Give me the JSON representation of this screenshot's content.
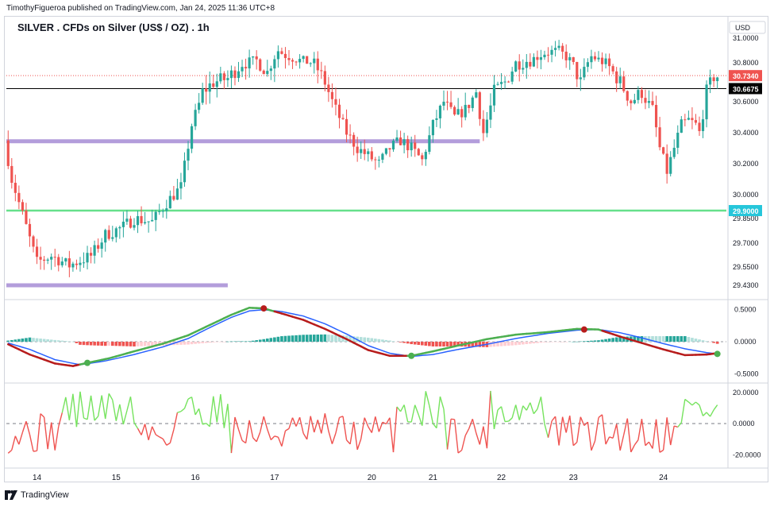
{
  "header": {
    "attribution": "TimothyFigueroa published on TradingView.com, Jan 24, 2025 11:36 UTC+8",
    "symbol_title": "SILVER . CFDs on Silver (US$ / OZ) . 1h"
  },
  "footer": {
    "brand": "TradingView",
    "logo_icon": "tradingview-logo-icon"
  },
  "colors": {
    "up": "#26a69a",
    "down": "#ef5350",
    "purple": "#b39ddb",
    "green_line": "#66e08b",
    "macd": "#2962ff",
    "signal_up": "#4caf50",
    "signal_down": "#b71c1c",
    "osc_up": "#76e35e",
    "osc_down": "#ef5350",
    "last_price_bg": "#ef5350",
    "ref_price_bg": "#000000",
    "level_bg": "#26c6da"
  },
  "chart_data": [
    {
      "type": "candlestick",
      "panel": "price",
      "currency_label": "USD",
      "y_ticks": [
        "31.0000",
        "30.8000",
        "30.6000",
        "30.4000",
        "30.2000",
        "30.0000",
        "29.8500",
        "29.7000",
        "29.5500",
        "29.4300"
      ],
      "y_tick_values": [
        31.0,
        30.8,
        30.6,
        30.4,
        30.2,
        30.0,
        29.85,
        29.7,
        29.55,
        29.43
      ],
      "last_price": 30.734,
      "last_price_label": "30.7340",
      "ref_price": 30.6675,
      "ref_price_label": "30.6675",
      "level_price": 29.9,
      "level_label": "29.9000",
      "zones": [
        {
          "price": 30.345,
          "from_index": 0,
          "to_index": 131
        },
        {
          "price": 29.43,
          "from_index": 0,
          "to_index": 61
        }
      ],
      "anchors": [
        {
          "i": 0,
          "v": 30.35
        },
        {
          "i": 2,
          "v": 30.1
        },
        {
          "i": 4,
          "v": 29.95
        },
        {
          "i": 6,
          "v": 29.8
        },
        {
          "i": 9,
          "v": 29.58
        },
        {
          "i": 13,
          "v": 29.62
        },
        {
          "i": 18,
          "v": 29.56
        },
        {
          "i": 24,
          "v": 29.62
        },
        {
          "i": 28,
          "v": 29.75
        },
        {
          "i": 33,
          "v": 29.8
        },
        {
          "i": 36,
          "v": 29.85
        },
        {
          "i": 41,
          "v": 29.83
        },
        {
          "i": 45,
          "v": 29.95
        },
        {
          "i": 49,
          "v": 30.05
        },
        {
          "i": 52,
          "v": 30.45
        },
        {
          "i": 55,
          "v": 30.65
        },
        {
          "i": 58,
          "v": 30.7
        },
        {
          "i": 62,
          "v": 30.72
        },
        {
          "i": 66,
          "v": 30.8
        },
        {
          "i": 70,
          "v": 30.82
        },
        {
          "i": 73,
          "v": 30.75
        },
        {
          "i": 76,
          "v": 30.9
        },
        {
          "i": 78,
          "v": 30.86
        },
        {
          "i": 82,
          "v": 30.82
        },
        {
          "i": 86,
          "v": 30.8
        },
        {
          "i": 89,
          "v": 30.7
        },
        {
          "i": 92,
          "v": 30.55
        },
        {
          "i": 95,
          "v": 30.4
        },
        {
          "i": 98,
          "v": 30.3
        },
        {
          "i": 101,
          "v": 30.25
        },
        {
          "i": 104,
          "v": 30.2
        },
        {
          "i": 107,
          "v": 30.3
        },
        {
          "i": 110,
          "v": 30.35
        },
        {
          "i": 113,
          "v": 30.3
        },
        {
          "i": 116,
          "v": 30.22
        },
        {
          "i": 119,
          "v": 30.45
        },
        {
          "i": 122,
          "v": 30.6
        },
        {
          "i": 125,
          "v": 30.5
        },
        {
          "i": 128,
          "v": 30.55
        },
        {
          "i": 131,
          "v": 30.65
        },
        {
          "i": 133,
          "v": 30.4
        },
        {
          "i": 136,
          "v": 30.65
        },
        {
          "i": 139,
          "v": 30.7
        },
        {
          "i": 142,
          "v": 30.8
        },
        {
          "i": 146,
          "v": 30.82
        },
        {
          "i": 150,
          "v": 30.88
        },
        {
          "i": 154,
          "v": 30.9
        },
        {
          "i": 157,
          "v": 30.82
        },
        {
          "i": 160,
          "v": 30.7
        },
        {
          "i": 163,
          "v": 30.85
        },
        {
          "i": 167,
          "v": 30.8
        },
        {
          "i": 171,
          "v": 30.7
        },
        {
          "i": 174,
          "v": 30.6
        },
        {
          "i": 177,
          "v": 30.65
        },
        {
          "i": 180,
          "v": 30.55
        },
        {
          "i": 182,
          "v": 30.3
        },
        {
          "i": 184,
          "v": 30.15
        },
        {
          "i": 186,
          "v": 30.3
        },
        {
          "i": 188,
          "v": 30.45
        },
        {
          "i": 190,
          "v": 30.48
        },
        {
          "i": 192,
          "v": 30.45
        },
        {
          "i": 193,
          "v": 30.4
        },
        {
          "i": 195,
          "v": 30.65
        },
        {
          "i": 197,
          "v": 30.73
        }
      ]
    },
    {
      "type": "macd",
      "panel": "macd",
      "y_ticks": [
        "0.5000",
        "0.0000",
        "-0.5000"
      ],
      "y_tick_values": [
        0.5,
        0.0,
        -0.5
      ],
      "y_range": [
        -0.62,
        0.62
      ],
      "macd_anchors": [
        {
          "i": 0,
          "v": -0.02
        },
        {
          "i": 6,
          "v": -0.12
        },
        {
          "i": 13,
          "v": -0.28
        },
        {
          "i": 20,
          "v": -0.36
        },
        {
          "i": 27,
          "v": -0.3
        },
        {
          "i": 35,
          "v": -0.2
        },
        {
          "i": 43,
          "v": -0.08
        },
        {
          "i": 50,
          "v": 0.05
        },
        {
          "i": 56,
          "v": 0.22
        },
        {
          "i": 62,
          "v": 0.38
        },
        {
          "i": 67,
          "v": 0.48
        },
        {
          "i": 71,
          "v": 0.5
        },
        {
          "i": 76,
          "v": 0.47
        },
        {
          "i": 82,
          "v": 0.4
        },
        {
          "i": 88,
          "v": 0.28
        },
        {
          "i": 94,
          "v": 0.12
        },
        {
          "i": 100,
          "v": -0.06
        },
        {
          "i": 106,
          "v": -0.18
        },
        {
          "i": 112,
          "v": -0.23
        },
        {
          "i": 118,
          "v": -0.2
        },
        {
          "i": 125,
          "v": -0.12
        },
        {
          "i": 133,
          "v": -0.04
        },
        {
          "i": 141,
          "v": 0.05
        },
        {
          "i": 150,
          "v": 0.13
        },
        {
          "i": 158,
          "v": 0.18
        },
        {
          "i": 164,
          "v": 0.19
        },
        {
          "i": 170,
          "v": 0.14
        },
        {
          "i": 176,
          "v": 0.06
        },
        {
          "i": 182,
          "v": -0.03
        },
        {
          "i": 188,
          "v": -0.11
        },
        {
          "i": 194,
          "v": -0.17
        },
        {
          "i": 197,
          "v": -0.19
        }
      ],
      "signal_anchors": [
        {
          "i": 0,
          "v": -0.04
        },
        {
          "i": 6,
          "v": -0.2
        },
        {
          "i": 13,
          "v": -0.34
        },
        {
          "i": 18,
          "v": -0.38
        },
        {
          "i": 22,
          "v": -0.33
        },
        {
          "i": 28,
          "v": -0.26
        },
        {
          "i": 35,
          "v": -0.15
        },
        {
          "i": 43,
          "v": -0.03
        },
        {
          "i": 50,
          "v": 0.1
        },
        {
          "i": 56,
          "v": 0.26
        },
        {
          "i": 62,
          "v": 0.42
        },
        {
          "i": 67,
          "v": 0.53
        },
        {
          "i": 71,
          "v": 0.52
        },
        {
          "i": 76,
          "v": 0.44
        },
        {
          "i": 82,
          "v": 0.34
        },
        {
          "i": 88,
          "v": 0.2
        },
        {
          "i": 94,
          "v": 0.04
        },
        {
          "i": 100,
          "v": -0.13
        },
        {
          "i": 106,
          "v": -0.22
        },
        {
          "i": 112,
          "v": -0.22
        },
        {
          "i": 118,
          "v": -0.15
        },
        {
          "i": 125,
          "v": -0.06
        },
        {
          "i": 133,
          "v": 0.04
        },
        {
          "i": 141,
          "v": 0.11
        },
        {
          "i": 150,
          "v": 0.15
        },
        {
          "i": 158,
          "v": 0.2
        },
        {
          "i": 164,
          "v": 0.19
        },
        {
          "i": 170,
          "v": 0.08
        },
        {
          "i": 176,
          "v": -0.02
        },
        {
          "i": 182,
          "v": -0.12
        },
        {
          "i": 188,
          "v": -0.21
        },
        {
          "i": 194,
          "v": -0.2
        },
        {
          "i": 197,
          "v": -0.18
        }
      ],
      "cross_points": [
        {
          "i": 22,
          "v": -0.33,
          "kind": "bullish"
        },
        {
          "i": 71,
          "v": 0.52,
          "kind": "bearish"
        },
        {
          "i": 112,
          "v": -0.22,
          "kind": "bullish"
        },
        {
          "i": 160,
          "v": 0.19,
          "kind": "bearish"
        },
        {
          "i": 197,
          "v": -0.19,
          "kind": "bullish"
        }
      ]
    },
    {
      "type": "oscillator",
      "panel": "osc",
      "y_ticks": [
        "20.0000",
        "0.0000",
        "-20.0000"
      ],
      "y_tick_values": [
        20,
        0,
        -20
      ],
      "y_range": [
        -27,
        24
      ],
      "colored_segments": [
        {
          "from": 0,
          "to": 15,
          "color": "down"
        },
        {
          "from": 15,
          "to": 36,
          "color": "up"
        },
        {
          "from": 36,
          "to": 47,
          "color": "down"
        },
        {
          "from": 47,
          "to": 62,
          "color": "up"
        },
        {
          "from": 62,
          "to": 108,
          "color": "down"
        },
        {
          "from": 108,
          "to": 122,
          "color": "up"
        },
        {
          "from": 122,
          "to": 134,
          "color": "down"
        },
        {
          "from": 134,
          "to": 150,
          "color": "up"
        },
        {
          "from": 150,
          "to": 186,
          "color": "down"
        },
        {
          "from": 186,
          "to": 197,
          "color": "up"
        }
      ]
    }
  ],
  "x_axis": {
    "labels": [
      "14",
      "15",
      "16",
      "17",
      "20",
      "21",
      "22",
      "23",
      "24"
    ],
    "label_indices": [
      8,
      30,
      52,
      74,
      101,
      118,
      137,
      157,
      182
    ],
    "bar_count": 200
  }
}
